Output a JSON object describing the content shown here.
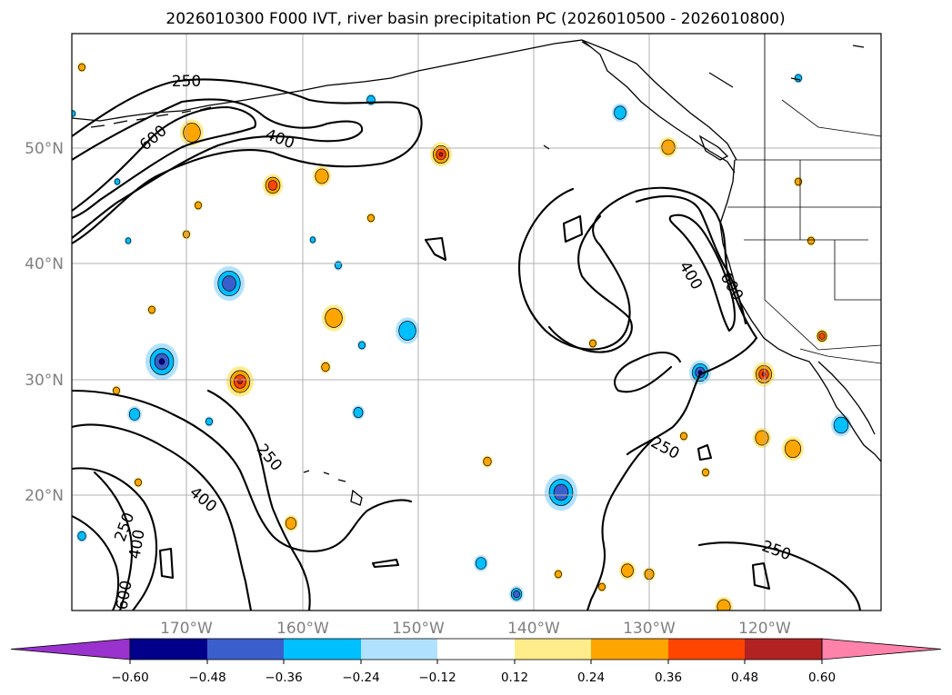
{
  "title": "2026010300 F000 IVT, river basin precipitation PC (2026010500 - 2026010800)",
  "map": {
    "lat_labels": [
      "50°N",
      "40°N",
      "30°N",
      "20°N"
    ],
    "lon_labels": [
      "170°W",
      "160°W",
      "150°W",
      "140°W",
      "130°W",
      "120°W"
    ],
    "ivt_contour_levels": [
      250,
      400,
      600
    ],
    "contour_labels": [
      "250",
      "600",
      "400",
      "400",
      "600",
      "250",
      "400",
      "250",
      "400",
      "600",
      "250",
      "250"
    ],
    "colorbar": {
      "tick_labels": [
        "−0.60",
        "−0.48",
        "−0.36",
        "−0.24",
        "−0.12",
        "0.12",
        "0.24",
        "0.36",
        "0.48",
        "0.60"
      ],
      "colors": [
        "#9a32cd",
        "#00008b",
        "#3a5fcd",
        "#00bfff",
        "#b0e2ff",
        "#ffffff",
        "#ffec8b",
        "#ffa500",
        "#ff4500",
        "#b22222",
        "#ff82ab"
      ],
      "extend": "both"
    }
  }
}
